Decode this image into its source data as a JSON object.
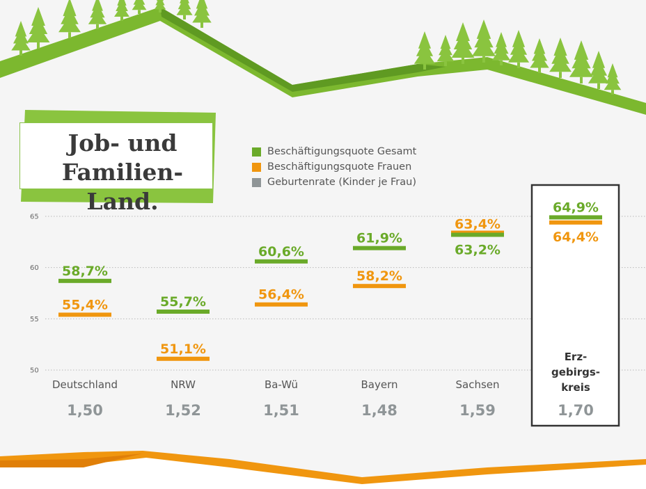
{
  "header": {
    "title": "Job- und\nFamilien-Land."
  },
  "legend": {
    "items": [
      {
        "label": "Beschäftigungsquote Gesamt",
        "color": "#6aaa29"
      },
      {
        "label": "Beschäftigungsquote Frauen",
        "color": "#f0960f"
      },
      {
        "label": "Geburtenrate (Kinder je Frau)",
        "color": "#8f9597"
      }
    ]
  },
  "chart_data": {
    "type": "bar",
    "categories": [
      "Deutschland",
      "NRW",
      "Ba-Wü",
      "Bayern",
      "Sachsen",
      "Erz-\ngebirgs-\nkreis"
    ],
    "series": [
      {
        "name": "Beschäftigungsquote Gesamt",
        "values": [
          58.7,
          55.7,
          60.6,
          61.9,
          63.2,
          64.9
        ],
        "labels": [
          "58,7%",
          "55,7%",
          "60,6%",
          "61,9%",
          "63,2%",
          "64,9%"
        ],
        "color": "#6aaa29"
      },
      {
        "name": "Beschäftigungsquote Frauen",
        "values": [
          55.4,
          51.1,
          56.4,
          58.2,
          63.4,
          64.4
        ],
        "labels": [
          "55,4%",
          "51,1%",
          "56,4%",
          "58,2%",
          "63,4%",
          "64,4%"
        ],
        "color": "#f0960f"
      }
    ],
    "birth_rates": [
      "1,50",
      "1,52",
      "1,51",
      "1,48",
      "1,59",
      "1,70"
    ],
    "yticks": [
      "50",
      "55",
      "60",
      "65"
    ],
    "ylim": [
      50,
      65
    ],
    "highlight_index": 5,
    "grid": true
  },
  "colors": {
    "green": "#6aaa29",
    "orange": "#f0960f",
    "gray": "#8f9597",
    "text": "#555555"
  }
}
